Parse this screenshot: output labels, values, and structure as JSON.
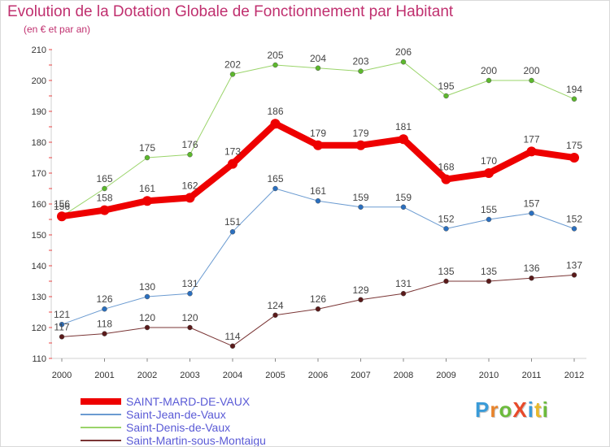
{
  "chart_data": {
    "type": "line",
    "title": "Evolution de la Dotation Globale de Fonctionnement par Habitant",
    "subtitle": "(en € et par an)",
    "x": [
      "2000",
      "2001",
      "2002",
      "2003",
      "2004",
      "2005",
      "2006",
      "2007",
      "2008",
      "2009",
      "2010",
      "2011",
      "2012"
    ],
    "ylim": [
      110,
      210
    ],
    "yticks": [
      110,
      120,
      130,
      140,
      150,
      160,
      170,
      180,
      190,
      200,
      210
    ],
    "grid": false,
    "legend_position": "bottom-left",
    "series": [
      {
        "name": "Saint-Jean-de-Vaux",
        "color": "#6b9bd1",
        "marker": "#2a6fbf",
        "width": 1,
        "values": [
          121,
          126,
          130,
          131,
          151,
          165,
          161,
          159,
          159,
          152,
          155,
          157,
          152
        ]
      },
      {
        "name": "Saint-Denis-de-Vaux",
        "color": "#9ad46a",
        "marker": "#5cb82c",
        "width": 1,
        "values": [
          156,
          165,
          175,
          176,
          202,
          205,
          204,
          203,
          206,
          195,
          200,
          200,
          194
        ]
      },
      {
        "name": "Saint-Martin-sous-Montaigu",
        "color": "#7a3535",
        "marker": "#5a1a1a",
        "width": 1,
        "values": [
          117,
          118,
          120,
          120,
          114,
          124,
          126,
          129,
          131,
          135,
          135,
          136,
          137
        ]
      },
      {
        "name": "SAINT-MARD-DE-VAUX",
        "color": "#ee0000",
        "marker": "#ee0000",
        "width": 8,
        "values": [
          156,
          158,
          161,
          162,
          173,
          186,
          179,
          179,
          181,
          168,
          170,
          177,
          175
        ]
      }
    ],
    "legend_order": [
      "SAINT-MARD-DE-VAUX",
      "Saint-Jean-de-Vaux",
      "Saint-Denis-de-Vaux",
      "Saint-Martin-sous-Montaigu"
    ]
  },
  "logo": {
    "text": "ProXiti",
    "colors": [
      "#3a9bd8",
      "#e8832a",
      "#6cbb3c",
      "#e84a2a",
      "#3a9bd8",
      "#e8b82a",
      "#6cbb3c"
    ]
  }
}
